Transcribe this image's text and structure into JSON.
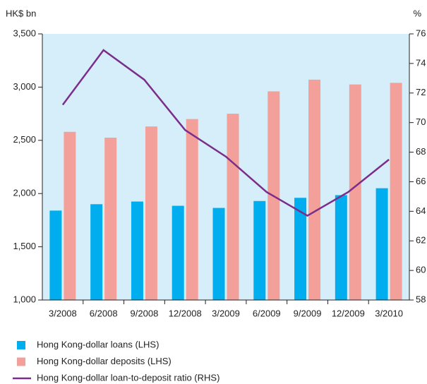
{
  "chart_data": {
    "type": "bar-line",
    "y_label": "HK$ bn",
    "y2_label": "%",
    "categories": [
      "3/2008",
      "6/2008",
      "9/2008",
      "12/2008",
      "3/2009",
      "6/2009",
      "9/2009",
      "12/2009",
      "3/2010"
    ],
    "series": [
      {
        "name": "Hong Kong-dollar loans (LHS)",
        "color": "#00aeef",
        "type": "bar",
        "values": [
          1840,
          1900,
          1925,
          1885,
          1865,
          1930,
          1960,
          1985,
          2050
        ]
      },
      {
        "name": "Hong Kong-dollar deposits (LHS)",
        "color": "#f4a09a",
        "type": "bar",
        "values": [
          2580,
          2525,
          2630,
          2700,
          2750,
          2960,
          3070,
          3025,
          3040
        ]
      },
      {
        "name": "Hong Kong-dollar loan-to-deposit ratio (RHS)",
        "color": "#7b2d8b",
        "type": "line",
        "axis": "y2",
        "values": [
          71.2,
          74.9,
          72.9,
          69.5,
          67.7,
          65.3,
          63.7,
          65.3,
          67.5
        ]
      }
    ],
    "ylim": [
      1000,
      3500
    ],
    "yticks": [
      {
        "value": 1000,
        "label": "1,000"
      },
      {
        "value": 1500,
        "label": "1,500"
      },
      {
        "value": 2000,
        "label": "2,000"
      },
      {
        "value": 2500,
        "label": "2,500"
      },
      {
        "value": 3000,
        "label": "3,000"
      },
      {
        "value": 3500,
        "label": "3,500"
      }
    ],
    "y2lim": [
      58,
      76
    ],
    "y2ticks": [
      58,
      60,
      62,
      64,
      66,
      68,
      70,
      72,
      74,
      76
    ],
    "plot_background": "#d6eef9"
  }
}
